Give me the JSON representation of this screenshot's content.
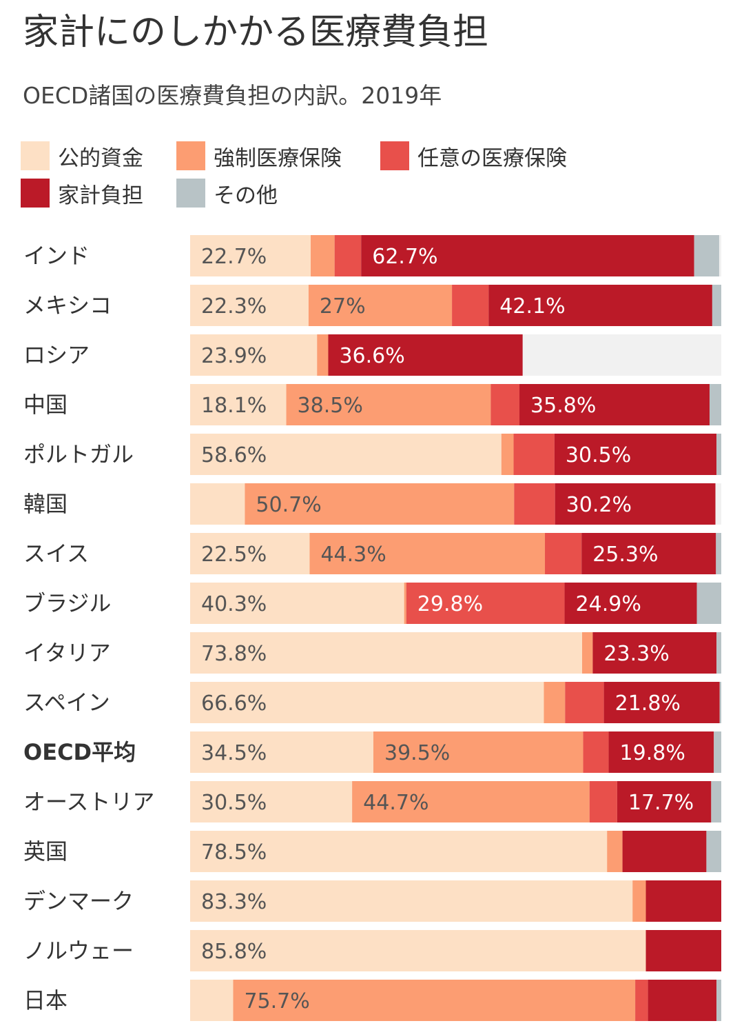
{
  "title": "家計にのしかかる医療費負担",
  "subtitle": "OECD諸国の医療費負担の内訳。2019年",
  "colors": {
    "public": "#fde0c5",
    "compulsory": "#fc9d72",
    "voluntary": "#e8504b",
    "household": "#bb1a28",
    "other": "#b8c3c6",
    "row_bg": "#f1f1f1"
  },
  "legend": [
    {
      "key": "public",
      "label": "公的資金"
    },
    {
      "key": "compulsory",
      "label": "強制医療保険"
    },
    {
      "key": "voluntary",
      "label": "任意の医療保険"
    },
    {
      "key": "household",
      "label": "家計負担"
    },
    {
      "key": "other",
      "label": "その他"
    }
  ],
  "chart_data": {
    "type": "bar",
    "orientation": "horizontal",
    "stacked": true,
    "unit": "%",
    "series": [
      {
        "name": "公的資金",
        "key": "public"
      },
      {
        "name": "強制医療保険",
        "key": "compulsory"
      },
      {
        "name": "任意の医療保険",
        "key": "voluntary"
      },
      {
        "name": "家計負担",
        "key": "household"
      },
      {
        "name": "その他",
        "key": "other"
      }
    ],
    "rows": [
      {
        "label": "インド",
        "bold": false,
        "values": [
          22.7,
          4.5,
          5.0,
          62.7,
          4.7
        ],
        "labels": [
          "22.7%",
          "",
          "",
          "62.7%",
          ""
        ]
      },
      {
        "label": "メキシコ",
        "bold": false,
        "values": [
          22.3,
          27.0,
          6.9,
          42.1,
          1.7
        ],
        "labels": [
          "22.3%",
          "27%",
          "",
          "42.1%",
          ""
        ]
      },
      {
        "label": "ロシア",
        "bold": false,
        "values": [
          23.9,
          2.1,
          0,
          36.6,
          0
        ],
        "labels": [
          "23.9%",
          "",
          "",
          "36.6%",
          ""
        ]
      },
      {
        "label": "中国",
        "bold": false,
        "values": [
          18.1,
          38.5,
          5.4,
          35.8,
          2.2
        ],
        "labels": [
          "18.1%",
          "38.5%",
          "",
          "35.8%",
          ""
        ]
      },
      {
        "label": "ポルトガル",
        "bold": false,
        "values": [
          58.6,
          2.3,
          7.7,
          30.5,
          0.9
        ],
        "labels": [
          "58.6%",
          "",
          "",
          "30.5%",
          ""
        ]
      },
      {
        "label": "韓国",
        "bold": false,
        "values": [
          10.3,
          50.7,
          7.7,
          30.2,
          0
        ],
        "labels": [
          "",
          "50.7%",
          "",
          "30.2%",
          ""
        ]
      },
      {
        "label": "スイス",
        "bold": false,
        "values": [
          22.5,
          44.3,
          6.9,
          25.3,
          1.0
        ],
        "labels": [
          "22.5%",
          "44.3%",
          "",
          "25.3%",
          ""
        ]
      },
      {
        "label": "ブラジル",
        "bold": false,
        "values": [
          40.3,
          0.4,
          29.8,
          24.9,
          4.6
        ],
        "labels": [
          "40.3%",
          "",
          "29.8%",
          "24.9%",
          ""
        ]
      },
      {
        "label": "イタリア",
        "bold": false,
        "values": [
          73.8,
          2.0,
          0,
          23.3,
          0.9
        ],
        "labels": [
          "73.8%",
          "",
          "",
          "23.3%",
          ""
        ]
      },
      {
        "label": "スペイン",
        "bold": false,
        "values": [
          66.6,
          4.0,
          7.3,
          21.8,
          0.3
        ],
        "labels": [
          "66.6%",
          "",
          "",
          "21.8%",
          ""
        ]
      },
      {
        "label": "OECD平均",
        "bold": true,
        "values": [
          34.5,
          39.5,
          4.8,
          19.8,
          1.4
        ],
        "labels": [
          "34.5%",
          "39.5%",
          "",
          "19.8%",
          ""
        ]
      },
      {
        "label": "オーストリア",
        "bold": false,
        "values": [
          30.5,
          44.7,
          5.2,
          17.7,
          1.9
        ],
        "labels": [
          "30.5%",
          "44.7%",
          "",
          "17.7%",
          ""
        ]
      },
      {
        "label": "英国",
        "bold": false,
        "values": [
          78.5,
          2.9,
          0,
          15.8,
          2.8
        ],
        "labels": [
          "78.5%",
          "",
          "",
          "",
          ""
        ]
      },
      {
        "label": "デンマーク",
        "bold": false,
        "values": [
          83.3,
          2.5,
          0,
          14.2,
          0
        ],
        "labels": [
          "83.3%",
          "",
          "",
          "",
          ""
        ]
      },
      {
        "label": "ノルウェー",
        "bold": false,
        "values": [
          85.8,
          0,
          0,
          14.2,
          0
        ],
        "labels": [
          "85.8%",
          "",
          "",
          "",
          ""
        ]
      },
      {
        "label": "日本",
        "bold": false,
        "values": [
          8.1,
          75.7,
          2.4,
          12.9,
          0.9
        ],
        "labels": [
          "",
          "75.7%",
          "",
          "",
          ""
        ]
      }
    ]
  }
}
